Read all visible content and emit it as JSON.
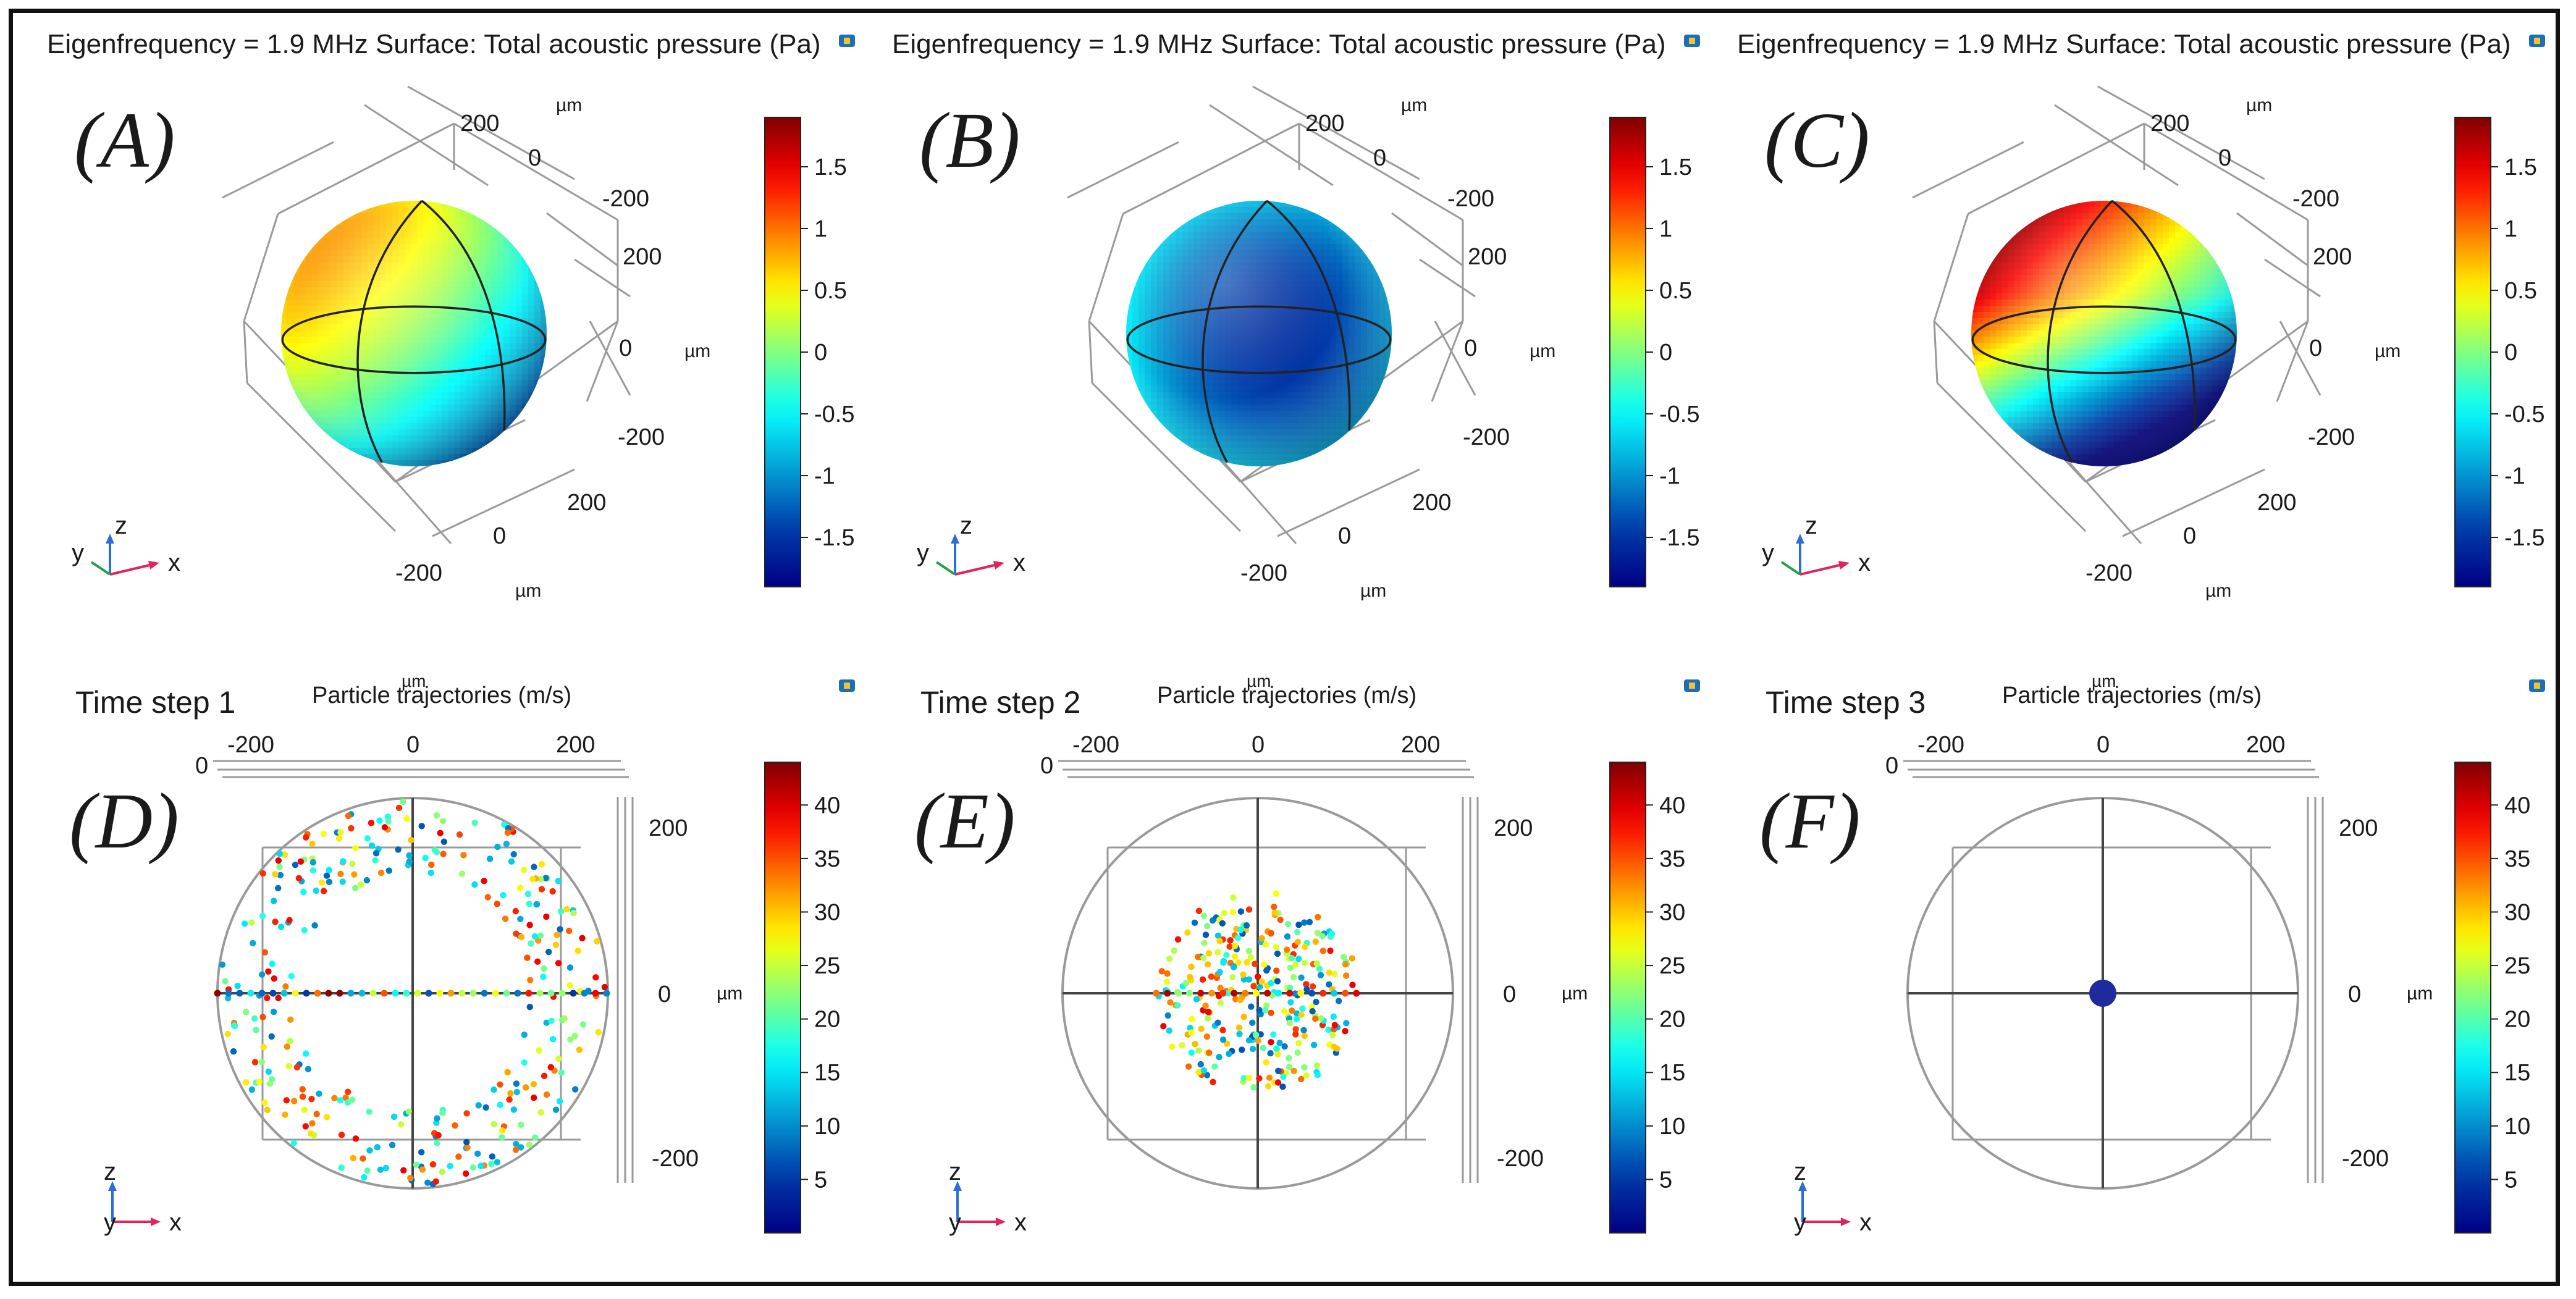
{
  "figure": {
    "top_panels": [
      {
        "tag": "(A)",
        "header": "Eigenfrequency = 1.9 MHz  Surface: Total acoustic pressure (Pa)",
        "scheme": "A"
      },
      {
        "tag": "(B)",
        "header": "Eigenfrequency = 1.9 MHz  Surface: Total acoustic pressure (Pa)",
        "scheme": "B"
      },
      {
        "tag": "(C)",
        "header": "Eigenfrequency = 1.9 MHz  Surface: Total acoustic pressure (Pa)",
        "scheme": "C"
      }
    ],
    "bottom_panels": [
      {
        "tag": "(D)",
        "step": "Time step 1",
        "header": "Particle trajectories   (m/s)",
        "cloud": "outer"
      },
      {
        "tag": "(E)",
        "step": "Time step 2",
        "header": "Particle trajectories   (m/s)",
        "cloud": "inner"
      },
      {
        "tag": "(F)",
        "step": "Time step 3",
        "header": "Particle trajectories   (m/s)",
        "cloud": "center"
      }
    ],
    "units": {
      "um": "µm"
    },
    "axis_letters": {
      "x": "x",
      "y": "y",
      "z": "z"
    },
    "colors": {
      "frame": "#111111",
      "grid": "#9a9a9a",
      "title": "#1a1a1a",
      "dark_blue": "#1a1f8c",
      "red": "#d7191c",
      "teal": "#2bb9c8"
    }
  },
  "chart_data": [
    {
      "type": "surface-3d",
      "panel": "A",
      "title": "Eigenfrequency = 1.9 MHz  Surface: Total acoustic pressure (Pa)",
      "colorbar": {
        "ticks": [
          1.5,
          1,
          0.5,
          0,
          -0.5,
          -1,
          -1.5
        ],
        "tick_labels": [
          "1.5",
          "1",
          "0.5",
          "0",
          "-0.5",
          "-1",
          "-1.5"
        ],
        "range": [
          -1.9,
          1.9
        ]
      },
      "axis_ticks": {
        "top": [
          "200",
          "0",
          "-200"
        ],
        "right": [
          "200",
          "0",
          "-200"
        ],
        "bottom": [
          "200",
          "0",
          "-200"
        ]
      },
      "unit": "µm"
    },
    {
      "type": "surface-3d",
      "panel": "B",
      "title": "Eigenfrequency = 1.9 MHz  Surface: Total acoustic pressure (Pa)",
      "colorbar": {
        "ticks": [
          1.5,
          1,
          0.5,
          0,
          -0.5,
          -1,
          -1.5
        ],
        "tick_labels": [
          "1.5",
          "1",
          "0.5",
          "0",
          "-0.5",
          "-1",
          "-1.5"
        ],
        "range": [
          -1.9,
          1.9
        ]
      },
      "axis_ticks": {
        "top": [
          "200",
          "0",
          "-200"
        ],
        "right": [
          "200",
          "0",
          "-200"
        ],
        "bottom": [
          "200",
          "0",
          "-200"
        ]
      },
      "unit": "µm"
    },
    {
      "type": "surface-3d",
      "panel": "C",
      "title": "Eigenfrequency = 1.9 MHz  Surface: Total acoustic pressure (Pa)",
      "colorbar": {
        "ticks": [
          1.5,
          1,
          0.5,
          0,
          -0.5,
          -1,
          -1.5
        ],
        "tick_labels": [
          "1.5",
          "1",
          "0.5",
          "0",
          "-0.5",
          "-1",
          "-1.5"
        ],
        "range": [
          -1.9,
          1.9
        ]
      },
      "axis_ticks": {
        "top": [
          "200",
          "0",
          "-200"
        ],
        "right": [
          "200",
          "0",
          "-200"
        ],
        "bottom": [
          "200",
          "0",
          "-200"
        ]
      },
      "unit": "µm"
    },
    {
      "type": "scatter",
      "panel": "D",
      "title": "Particle trajectories   (m/s)",
      "step": "Time step 1",
      "x_ticks": [
        "-200",
        "0",
        "200"
      ],
      "y_ticks": [
        "200",
        "0",
        "-200"
      ],
      "corner_tick": "0",
      "unit": "µm",
      "colorbar": {
        "ticks": [
          40,
          35,
          30,
          25,
          20,
          15,
          10,
          5
        ],
        "tick_labels": [
          "40",
          "35",
          "30",
          "25",
          "20",
          "15",
          "10",
          "5"
        ],
        "range": [
          0,
          44
        ]
      },
      "particle_radius_um": [
        150,
        250
      ],
      "particle_count": 340
    },
    {
      "type": "scatter",
      "panel": "E",
      "title": "Particle trajectories   (m/s)",
      "step": "Time step 2",
      "x_ticks": [
        "-200",
        "0",
        "200"
      ],
      "y_ticks": [
        "200",
        "0",
        "-200"
      ],
      "corner_tick": "0",
      "unit": "µm",
      "colorbar": {
        "ticks": [
          40,
          35,
          30,
          25,
          20,
          15,
          10,
          5
        ],
        "tick_labels": [
          "40",
          "35",
          "30",
          "25",
          "20",
          "15",
          "10",
          "5"
        ],
        "range": [
          0,
          44
        ]
      },
      "particle_radius_um": [
        0,
        130
      ],
      "particle_count": 300
    },
    {
      "type": "scatter",
      "panel": "F",
      "title": "Particle trajectories   (m/s)",
      "step": "Time step 3",
      "x_ticks": [
        "-200",
        "0",
        "200"
      ],
      "y_ticks": [
        "200",
        "0",
        "-200"
      ],
      "corner_tick": "0",
      "unit": "µm",
      "colorbar": {
        "ticks": [
          40,
          35,
          30,
          25,
          20,
          15,
          10,
          5
        ],
        "tick_labels": [
          "40",
          "35",
          "30",
          "25",
          "20",
          "15",
          "10",
          "5"
        ],
        "range": [
          0,
          44
        ]
      },
      "particle_radius_um": [
        0,
        15
      ],
      "particle_count": 1
    }
  ]
}
